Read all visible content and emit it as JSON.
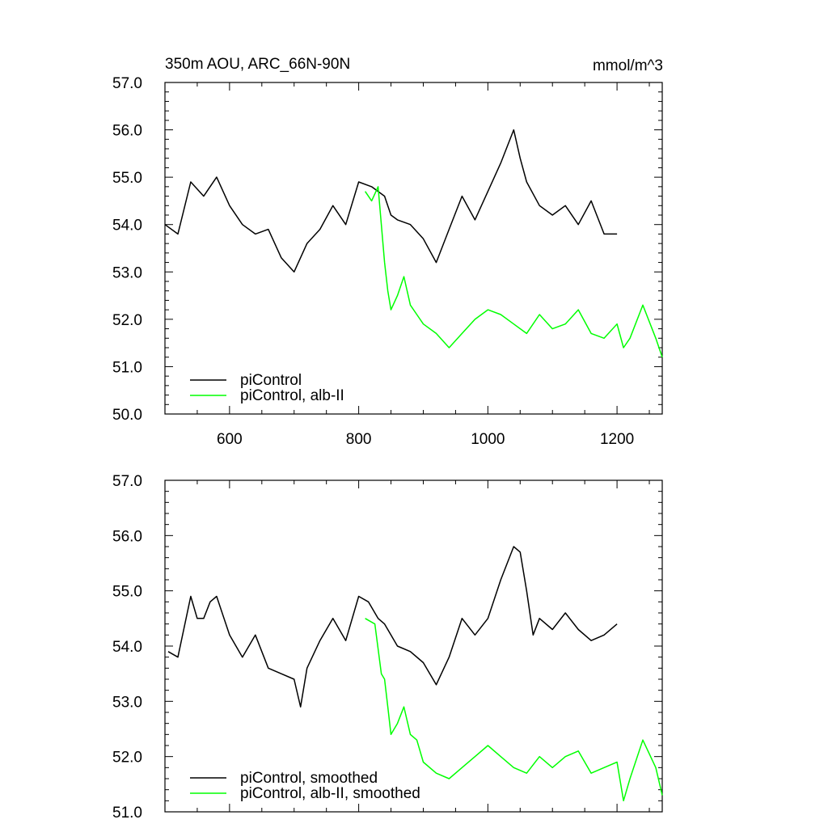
{
  "chart_data": [
    {
      "type": "line",
      "title": "350m AOU, ARC_66N-90N",
      "units": "mmol/m^3",
      "xlim": [
        500,
        1270
      ],
      "ylim": [
        50.0,
        57.0
      ],
      "x_ticks": [
        "600",
        "800",
        "1000",
        "1200"
      ],
      "y_ticks": [
        "50.0",
        "51.0",
        "52.0",
        "53.0",
        "54.0",
        "55.0",
        "56.0",
        "57.0"
      ],
      "legend_position": "bottom-left",
      "series": [
        {
          "name": "piControl",
          "color": "#000000",
          "x": [
            500,
            520,
            540,
            560,
            580,
            600,
            620,
            640,
            660,
            680,
            700,
            720,
            740,
            760,
            780,
            800,
            820,
            840,
            850,
            860,
            880,
            900,
            920,
            940,
            960,
            980,
            1000,
            1020,
            1040,
            1050,
            1060,
            1080,
            1100,
            1120,
            1140,
            1160,
            1180,
            1200
          ],
          "y": [
            54.0,
            53.8,
            54.9,
            54.6,
            55.0,
            54.4,
            54.0,
            53.8,
            53.9,
            53.3,
            53.0,
            53.6,
            53.9,
            54.4,
            54.0,
            54.9,
            54.8,
            54.6,
            54.2,
            54.1,
            54.0,
            53.7,
            53.2,
            53.9,
            54.6,
            54.1,
            54.7,
            55.3,
            56.0,
            55.4,
            54.9,
            54.4,
            54.2,
            54.4,
            54.0,
            54.5,
            53.8,
            53.8
          ]
        },
        {
          "name": "piControl, alb-II",
          "color": "#00ff00",
          "x": [
            810,
            820,
            830,
            835,
            840,
            845,
            850,
            860,
            870,
            880,
            890,
            900,
            920,
            940,
            960,
            980,
            1000,
            1020,
            1040,
            1060,
            1080,
            1100,
            1120,
            1140,
            1160,
            1180,
            1200,
            1210,
            1220,
            1240,
            1260,
            1270
          ],
          "y": [
            54.7,
            54.5,
            54.8,
            54.0,
            53.2,
            52.6,
            52.2,
            52.5,
            52.9,
            52.3,
            52.1,
            51.9,
            51.7,
            51.4,
            51.7,
            52.0,
            52.2,
            52.1,
            51.9,
            51.7,
            52.1,
            51.8,
            51.9,
            52.2,
            51.7,
            51.6,
            51.9,
            51.4,
            51.6,
            52.3,
            51.6,
            51.2
          ]
        }
      ]
    },
    {
      "type": "line",
      "title": "",
      "xlim": [
        500,
        1270
      ],
      "ylim": [
        51.0,
        57.0
      ],
      "y_ticks": [
        "51.0",
        "52.0",
        "53.0",
        "54.0",
        "55.0",
        "56.0",
        "57.0"
      ],
      "legend_position": "bottom-left",
      "series": [
        {
          "name": "piControl, smoothed",
          "color": "#000000",
          "x": [
            505,
            520,
            540,
            550,
            560,
            570,
            580,
            600,
            620,
            640,
            660,
            680,
            700,
            710,
            720,
            740,
            760,
            780,
            800,
            815,
            830,
            840,
            850,
            860,
            880,
            900,
            920,
            940,
            960,
            980,
            1000,
            1020,
            1040,
            1050,
            1060,
            1070,
            1080,
            1100,
            1120,
            1140,
            1160,
            1180,
            1200
          ],
          "y": [
            53.9,
            53.8,
            54.9,
            54.5,
            54.5,
            54.8,
            54.9,
            54.2,
            53.8,
            54.2,
            53.6,
            53.5,
            53.4,
            52.9,
            53.6,
            54.1,
            54.5,
            54.1,
            54.9,
            54.8,
            54.5,
            54.4,
            54.2,
            54.0,
            53.9,
            53.7,
            53.3,
            53.8,
            54.5,
            54.2,
            54.5,
            55.2,
            55.8,
            55.7,
            55.0,
            54.2,
            54.5,
            54.3,
            54.6,
            54.3,
            54.1,
            54.2,
            54.4
          ]
        },
        {
          "name": "piControl, alb-II, smoothed",
          "color": "#00ff00",
          "x": [
            810,
            825,
            835,
            840,
            845,
            850,
            860,
            870,
            880,
            890,
            900,
            920,
            940,
            960,
            980,
            1000,
            1020,
            1040,
            1060,
            1080,
            1100,
            1120,
            1140,
            1160,
            1180,
            1200,
            1210,
            1220,
            1240,
            1260,
            1270
          ],
          "y": [
            54.5,
            54.4,
            53.5,
            53.4,
            52.9,
            52.4,
            52.6,
            52.9,
            52.4,
            52.3,
            51.9,
            51.7,
            51.6,
            51.8,
            52.0,
            52.2,
            52.0,
            51.8,
            51.7,
            52.0,
            51.8,
            52.0,
            52.1,
            51.7,
            51.8,
            51.9,
            51.2,
            51.6,
            52.3,
            51.8,
            51.3
          ]
        }
      ]
    }
  ]
}
